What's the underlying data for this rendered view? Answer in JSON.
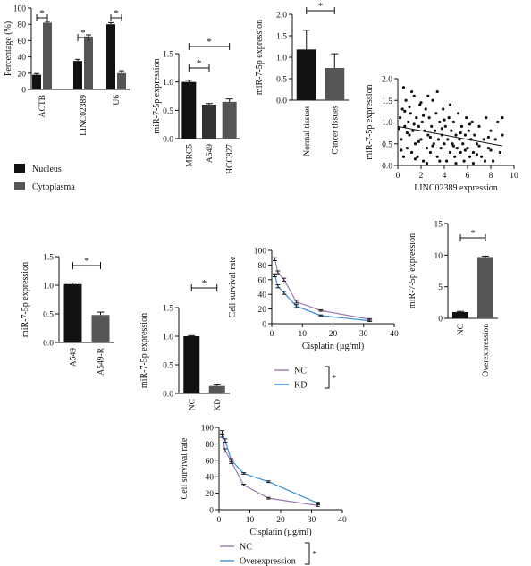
{
  "chart_data": [
    {
      "id": "panelA",
      "type": "bar",
      "categories": [
        "ACTB",
        "LINC02389",
        "U6"
      ],
      "series": [
        {
          "name": "Nucleus",
          "values": [
            18,
            35,
            80
          ],
          "errors": [
            1.5,
            2,
            2
          ],
          "color": "#111111"
        },
        {
          "name": "Cytoplasma",
          "values": [
            82,
            65,
            20
          ],
          "errors": [
            1.5,
            2,
            3
          ],
          "color": "#555555"
        }
      ],
      "ylabel": "Percentage (%)",
      "ylim": [
        0,
        100
      ],
      "yticks": [
        0,
        20,
        40,
        60,
        80,
        100
      ],
      "significance": [
        "*",
        "*",
        "*"
      ],
      "legend": "bottom"
    },
    {
      "id": "panelB",
      "type": "bar",
      "categories": [
        "MRC5",
        "A549",
        "HCC827"
      ],
      "values": [
        1.0,
        0.6,
        0.65
      ],
      "errors": [
        0.03,
        0.02,
        0.05
      ],
      "colors": [
        "#111111",
        "#333333",
        "#555555"
      ],
      "ylabel": "miR-7-5p expression",
      "ylim": [
        0,
        1.5
      ],
      "yticks": [
        0.0,
        0.5,
        1.0,
        1.5
      ],
      "significance": [
        "*",
        "*"
      ]
    },
    {
      "id": "panelC",
      "type": "bar",
      "categories": [
        "Normal tissues",
        "Cancer tissues"
      ],
      "values": [
        1.18,
        0.75
      ],
      "errors": [
        0.45,
        0.33
      ],
      "colors": [
        "#111111",
        "#555555"
      ],
      "ylabel": "miR-7-5p expression",
      "ylim": [
        0,
        2.0
      ],
      "yticks": [
        0.0,
        0.5,
        1.0,
        1.5,
        2.0
      ],
      "significance": [
        "*"
      ]
    },
    {
      "id": "panelD",
      "type": "scatter",
      "xlabel": "LINC02389 expression",
      "ylabel": "miR-7-5p expression",
      "xlim": [
        0,
        10
      ],
      "ylim": [
        0,
        2.0
      ],
      "xticks": [
        0,
        2,
        4,
        6,
        8,
        10
      ],
      "yticks": [
        0.0,
        0.5,
        1.0,
        1.5,
        2.0
      ],
      "trend": [
        [
          0,
          0.9
        ],
        [
          9,
          0.45
        ]
      ],
      "points": [
        [
          0.2,
          1.1
        ],
        [
          0.3,
          0.6
        ],
        [
          0.4,
          1.3
        ],
        [
          0.5,
          0.2
        ],
        [
          0.6,
          0.9
        ],
        [
          0.7,
          1.5
        ],
        [
          0.8,
          0.4
        ],
        [
          0.9,
          1.0
        ],
        [
          1.0,
          0.7
        ],
        [
          1.1,
          1.2
        ],
        [
          1.2,
          0.3
        ],
        [
          1.3,
          0.8
        ],
        [
          1.4,
          1.6
        ],
        [
          1.5,
          0.5
        ],
        [
          1.6,
          1.1
        ],
        [
          1.7,
          0.2
        ],
        [
          1.8,
          0.9
        ],
        [
          1.9,
          1.4
        ],
        [
          2.0,
          0.6
        ],
        [
          2.1,
          1.0
        ],
        [
          2.2,
          0.1
        ],
        [
          2.3,
          0.8
        ],
        [
          2.4,
          1.3
        ],
        [
          2.5,
          0.4
        ],
        [
          2.6,
          0.7
        ],
        [
          2.7,
          1.1
        ],
        [
          2.8,
          0.3
        ],
        [
          2.9,
          0.9
        ],
        [
          3.0,
          1.5
        ],
        [
          3.1,
          0.5
        ],
        [
          3.2,
          0.8
        ],
        [
          3.3,
          1.2
        ],
        [
          3.4,
          0.2
        ],
        [
          3.5,
          0.6
        ],
        [
          3.6,
          1.0
        ],
        [
          3.7,
          0.4
        ],
        [
          3.8,
          0.7
        ],
        [
          3.9,
          1.3
        ],
        [
          4.0,
          0.5
        ],
        [
          4.1,
          0.9
        ],
        [
          4.2,
          0.1
        ],
        [
          4.3,
          0.6
        ],
        [
          4.4,
          1.1
        ],
        [
          4.5,
          0.3
        ],
        [
          4.6,
          0.8
        ],
        [
          4.7,
          0.5
        ],
        [
          4.8,
          1.0
        ],
        [
          4.9,
          0.2
        ],
        [
          5.0,
          0.7
        ],
        [
          5.1,
          0.4
        ],
        [
          5.2,
          1.2
        ],
        [
          5.3,
          0.6
        ],
        [
          5.4,
          0.3
        ],
        [
          5.5,
          0.9
        ],
        [
          5.6,
          0.5
        ],
        [
          5.7,
          0.1
        ],
        [
          5.8,
          0.7
        ],
        [
          5.9,
          1.1
        ],
        [
          6.0,
          0.4
        ],
        [
          6.1,
          0.8
        ],
        [
          6.2,
          0.2
        ],
        [
          6.3,
          0.6
        ],
        [
          6.4,
          1.0
        ],
        [
          6.5,
          0.3
        ],
        [
          6.6,
          0.7
        ],
        [
          6.8,
          0.5
        ],
        [
          7.0,
          0.9
        ],
        [
          7.2,
          0.2
        ],
        [
          7.4,
          0.6
        ],
        [
          7.6,
          1.1
        ],
        [
          7.8,
          0.4
        ],
        [
          8.0,
          0.8
        ],
        [
          8.2,
          0.1
        ],
        [
          8.4,
          0.6
        ],
        [
          8.6,
          1.0
        ],
        [
          8.8,
          0.3
        ],
        [
          9.0,
          0.7
        ],
        [
          9.0,
          1.1
        ],
        [
          0.5,
          1.8
        ],
        [
          1.2,
          1.7
        ],
        [
          2.6,
          1.6
        ],
        [
          3.4,
          1.7
        ],
        [
          1.0,
          1.35
        ],
        [
          2.0,
          1.45
        ],
        [
          4.5,
          1.4
        ],
        [
          0.3,
          0.35
        ],
        [
          1.5,
          0.15
        ],
        [
          2.5,
          0.05
        ],
        [
          3.6,
          0.1
        ],
        [
          5.0,
          0.05
        ],
        [
          6.5,
          0.05
        ],
        [
          7.5,
          0.1
        ],
        [
          0.8,
          0.75
        ],
        [
          1.8,
          0.55
        ],
        [
          2.8,
          0.65
        ],
        [
          3.8,
          0.85
        ],
        [
          4.8,
          0.45
        ],
        [
          5.8,
          0.35
        ],
        [
          6.8,
          0.25
        ],
        [
          7.8,
          0.65
        ],
        [
          0.1,
          0.85
        ],
        [
          0.6,
          1.25
        ],
        [
          1.4,
          0.95
        ],
        [
          2.2,
          1.15
        ],
        [
          3.0,
          0.45
        ],
        [
          4.0,
          1.05
        ],
        [
          5.4,
          0.75
        ],
        [
          6.2,
          0.95
        ],
        [
          7.0,
          0.45
        ],
        [
          8.0,
          0.35
        ]
      ]
    },
    {
      "id": "panelE",
      "type": "bar",
      "categories": [
        "A549",
        "A549-R"
      ],
      "values": [
        1.02,
        0.48
      ],
      "errors": [
        0.02,
        0.05
      ],
      "colors": [
        "#111111",
        "#555555"
      ],
      "ylabel": "miR-7-5p expression",
      "ylim": [
        0,
        1.5
      ],
      "yticks": [
        0.0,
        0.5,
        1.0,
        1.5
      ],
      "significance": [
        "*"
      ]
    },
    {
      "id": "panelF",
      "type": "bar",
      "categories": [
        "NC",
        "KD"
      ],
      "values": [
        1.0,
        0.13
      ],
      "errors": [
        0.01,
        0.02
      ],
      "colors": [
        "#111111",
        "#555555"
      ],
      "ylabel": "miR-7-5p expression",
      "ylim": [
        0,
        1.5
      ],
      "yticks": [
        0.0,
        0.5,
        1.0,
        1.5
      ],
      "significance": [
        "*"
      ]
    },
    {
      "id": "panelG",
      "type": "line",
      "xlabel": "Cisplatin (µg/ml)",
      "ylabel": "Cell survival rate",
      "xlim": [
        0,
        40
      ],
      "ylim": [
        0,
        100
      ],
      "xticks": [
        0,
        10,
        20,
        30,
        40
      ],
      "yticks": [
        0,
        20,
        40,
        60,
        80,
        100
      ],
      "x": [
        1,
        2,
        4,
        8,
        16,
        32
      ],
      "series": [
        {
          "name": "NC",
          "values": [
            88,
            70,
            60,
            30,
            18,
            6
          ],
          "errors": [
            2,
            2,
            2,
            2,
            1,
            1
          ],
          "color": "#9a79b0"
        },
        {
          "name": "KD",
          "values": [
            66,
            51,
            42,
            24,
            11,
            4
          ],
          "errors": [
            2,
            2,
            2,
            2,
            1,
            1
          ],
          "color": "#3b8fd6"
        }
      ],
      "significance": "*",
      "legend": "bottom"
    },
    {
      "id": "panelH",
      "type": "bar",
      "categories": [
        "NC",
        "Overexpression"
      ],
      "values": [
        1.0,
        9.7
      ],
      "errors": [
        0.1,
        0.15
      ],
      "colors": [
        "#111111",
        "#555555"
      ],
      "ylabel": "miR-7-5p expression",
      "ylim": [
        0,
        15
      ],
      "yticks": [
        0,
        5,
        10,
        15
      ],
      "significance": [
        "*"
      ]
    },
    {
      "id": "panelI",
      "type": "line",
      "xlabel": "Cisplatin (µg/ml)",
      "ylabel": "Cell survival rate",
      "xlim": [
        0,
        40
      ],
      "ylim": [
        0,
        100
      ],
      "xticks": [
        0,
        10,
        20,
        30,
        40
      ],
      "yticks": [
        0,
        20,
        40,
        60,
        80,
        100
      ],
      "x": [
        1,
        2,
        4,
        8,
        16,
        32
      ],
      "series": [
        {
          "name": "NC",
          "values": [
            90,
            72,
            58,
            30,
            14,
            5
          ],
          "errors": [
            2,
            2,
            2,
            1,
            1,
            1
          ],
          "color": "#9a79b0"
        },
        {
          "name": "Overexpression",
          "values": [
            94,
            84,
            60,
            44,
            34,
            8
          ],
          "errors": [
            2,
            2,
            2,
            1,
            1,
            1
          ],
          "color": "#3b8fd6"
        }
      ],
      "significance": "*",
      "legend": "bottom"
    }
  ]
}
